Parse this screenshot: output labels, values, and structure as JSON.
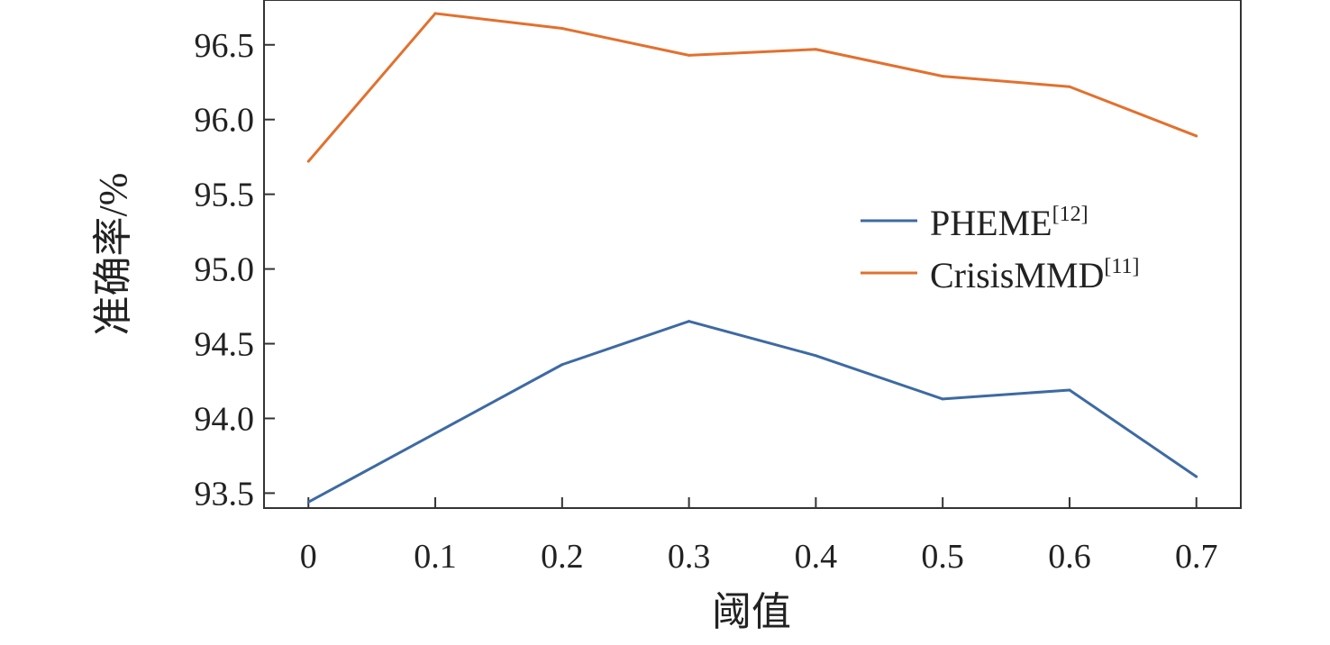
{
  "chart_data": {
    "type": "line",
    "title": "",
    "xlabel": "阈值",
    "ylabel": "准确率/%",
    "x": [
      0,
      0.1,
      0.2,
      0.3,
      0.4,
      0.5,
      0.6,
      0.7
    ],
    "x_tick_labels": [
      "0",
      "0.1",
      "0.2",
      "0.3",
      "0.4",
      "0.5",
      "0.6",
      "0.7"
    ],
    "y_ticks": [
      93.5,
      94.0,
      94.5,
      95.0,
      95.5,
      96.0,
      96.5
    ],
    "y_tick_labels": [
      "93.5",
      "94.0",
      "94.5",
      "95.0",
      "95.5",
      "96.0",
      "96.5"
    ],
    "xlim": [
      -0.035,
      0.735
    ],
    "ylim": [
      93.4,
      96.8
    ],
    "grid": false,
    "legend_position": "right",
    "series": [
      {
        "name": "PHEME",
        "ref": "[12]",
        "color": "#3d6aa3",
        "values": [
          93.44,
          93.9,
          94.36,
          94.65,
          94.42,
          94.13,
          94.19,
          93.61
        ]
      },
      {
        "name": "CrisisMMD",
        "ref": "[11]",
        "color": "#e3702e",
        "values": [
          95.72,
          96.71,
          96.61,
          96.43,
          96.47,
          96.29,
          96.22,
          95.89
        ]
      }
    ]
  }
}
